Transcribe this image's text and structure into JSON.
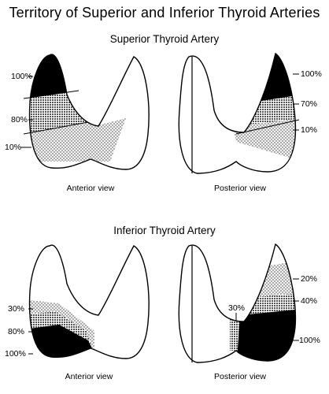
{
  "title": "Territory of Superior and Inferior Thyroid Arteries",
  "sections": {
    "superior": {
      "subtitle": "Superior Thyroid Artery",
      "anterior": {
        "caption": "Anterior view",
        "labels": [
          "100%",
          "80%",
          "10%"
        ]
      },
      "posterior": {
        "caption": "Posterior view",
        "labels": [
          "100%",
          "70%",
          "10%"
        ]
      }
    },
    "inferior": {
      "subtitle": "Inferior Thyroid Artery",
      "anterior": {
        "caption": "Anterior view",
        "labels": [
          "30%",
          "80%",
          "100%"
        ]
      },
      "posterior": {
        "caption": "Posterior view",
        "labels": [
          "20%",
          "40%",
          "30%",
          "100%"
        ]
      }
    }
  },
  "colors": {
    "outline": "#000000",
    "full": "#000000",
    "dense": "#6a6a6a",
    "light_dots": "#c9c9c9"
  }
}
